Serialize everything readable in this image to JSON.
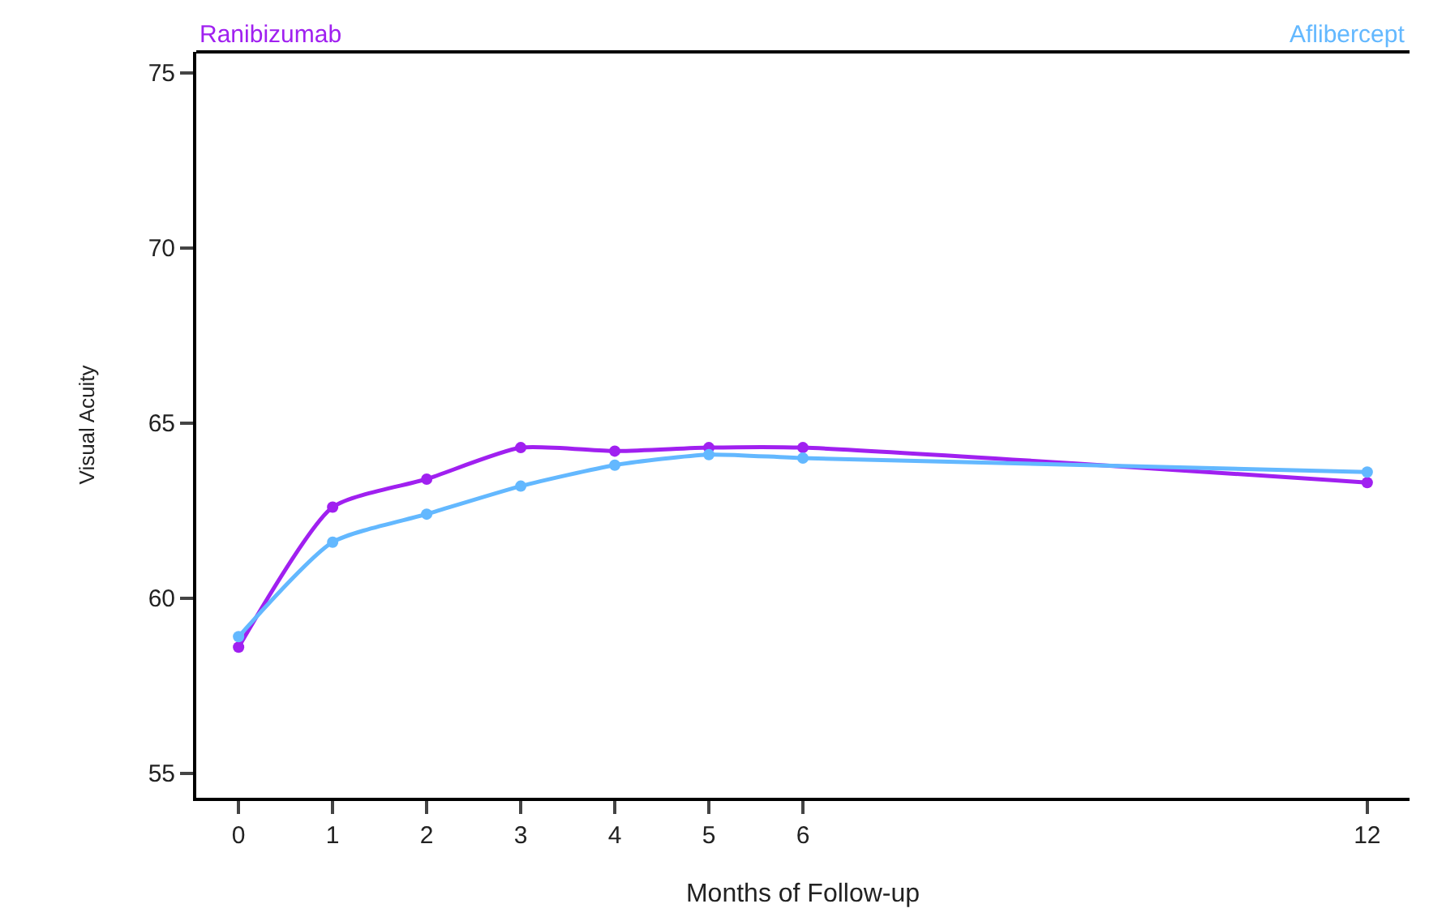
{
  "chart_data": {
    "type": "line",
    "xlabel": "Months of Follow-up",
    "ylabel": "Visual Acuity",
    "x": [
      0,
      1,
      2,
      3,
      4,
      5,
      6,
      12
    ],
    "series": [
      {
        "name": "Ranibizumab",
        "color": "#a020f0",
        "values": [
          58.6,
          62.6,
          63.4,
          64.3,
          64.2,
          64.3,
          64.3,
          63.3
        ]
      },
      {
        "name": "Aflibercept",
        "color": "#63b8ff",
        "values": [
          58.9,
          61.6,
          62.4,
          63.2,
          63.8,
          64.1,
          64.0,
          63.6
        ]
      }
    ],
    "xlim": [
      -0.45,
      12.45
    ],
    "xticks": [
      0,
      1,
      2,
      3,
      4,
      5,
      6,
      12
    ],
    "ylim": [
      54.3,
      75.6
    ],
    "yticks": [
      55,
      60,
      65,
      70,
      75
    ],
    "marker": "circle",
    "line_style": "solid"
  }
}
